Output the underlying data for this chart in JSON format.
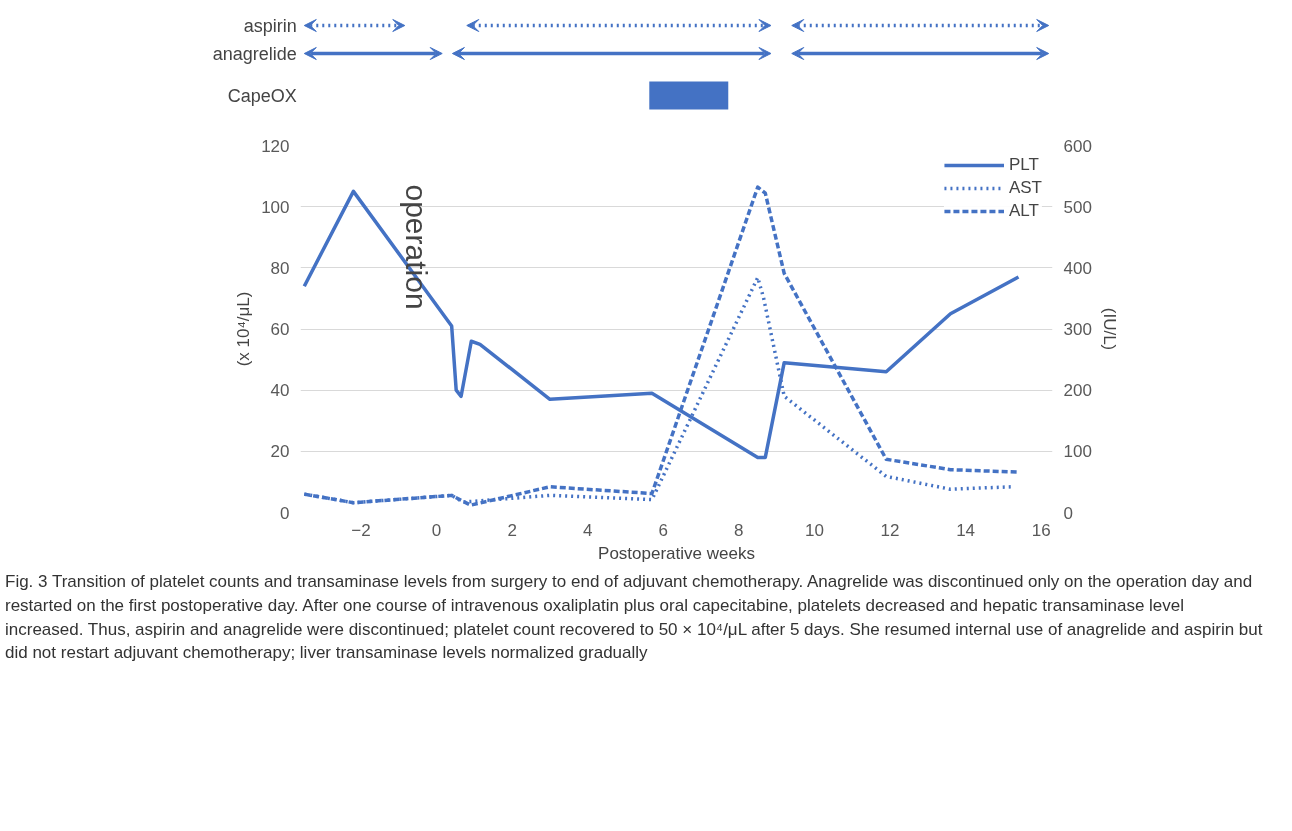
{
  "chart_data": {
    "type": "line",
    "xlabel": "Postoperative weeks",
    "ylabel": "(x 10⁴/μL)",
    "y2label": "(IU/L)",
    "xlim": [
      -3.6,
      16.3
    ],
    "xticks": [
      -2,
      0,
      2,
      4,
      6,
      8,
      10,
      12,
      14,
      16
    ],
    "ylim": [
      0,
      120
    ],
    "yticks": [
      0,
      20,
      40,
      60,
      80,
      100,
      120
    ],
    "y2lim": [
      0,
      600
    ],
    "y2ticks": [
      0,
      100,
      200,
      300,
      400,
      500,
      600
    ],
    "grid": "y",
    "legend": "top right",
    "marker": "none",
    "series": [
      {
        "name": "PLT",
        "color": "#4472c4",
        "line_style": "solid",
        "x": [
          -3.5,
          -2.2,
          0.4,
          0.52,
          0.65,
          0.92,
          1.15,
          3.0,
          5.7,
          8.5,
          8.7,
          9.2,
          11.9,
          13.6,
          15.4
        ],
        "values": [
          74,
          105,
          61,
          40,
          38,
          56,
          55,
          37,
          39,
          18,
          18,
          49,
          46,
          65,
          77
        ]
      },
      {
        "name": "AST",
        "color": "#4472c4",
        "line_style": "dotted",
        "axis": "y2",
        "x": [
          -3.5,
          -2.2,
          0.4,
          0.7,
          3.0,
          5.7,
          8.5,
          8.65,
          9.2,
          11.9,
          13.6,
          15.2
        ],
        "values": [
          30,
          16,
          28,
          17,
          28,
          21,
          384,
          352,
          190,
          59,
          38,
          42
        ]
      },
      {
        "name": "ALT",
        "color": "#4472c4",
        "line_style": "dashed",
        "axis": "y2",
        "x": [
          -3.5,
          -2.2,
          0.4,
          0.9,
          3.0,
          5.7,
          8.5,
          8.7,
          9.2,
          11.9,
          13.6,
          15.4
        ],
        "values": [
          30,
          16,
          28,
          12,
          42,
          31,
          532,
          522,
          391,
          87,
          70,
          66
        ]
      }
    ],
    "annotations": [
      "operation",
      "aspirin",
      "anagrelide",
      "CapeOX",
      "Fig. 3 Transition of platelet counts and transaminase levels from surgery to end of adjuvant chemotherapy. Anagrelide was discontinued only on the operation day and restarted on the first postoperative day. After one course of intravenous oxaliplatin plus oral capecitabine, platelets decreased and hepatic transaminase level increased. Thus, aspirin and anagrelide were discontinued; platelet count recovered to 50 × 10⁴/μL after 5 days. She resumed internal use of anagrelide and aspirin but did not restart adjuvant chemotherapy; liver transaminase levels normalized gradually"
    ]
  }
}
